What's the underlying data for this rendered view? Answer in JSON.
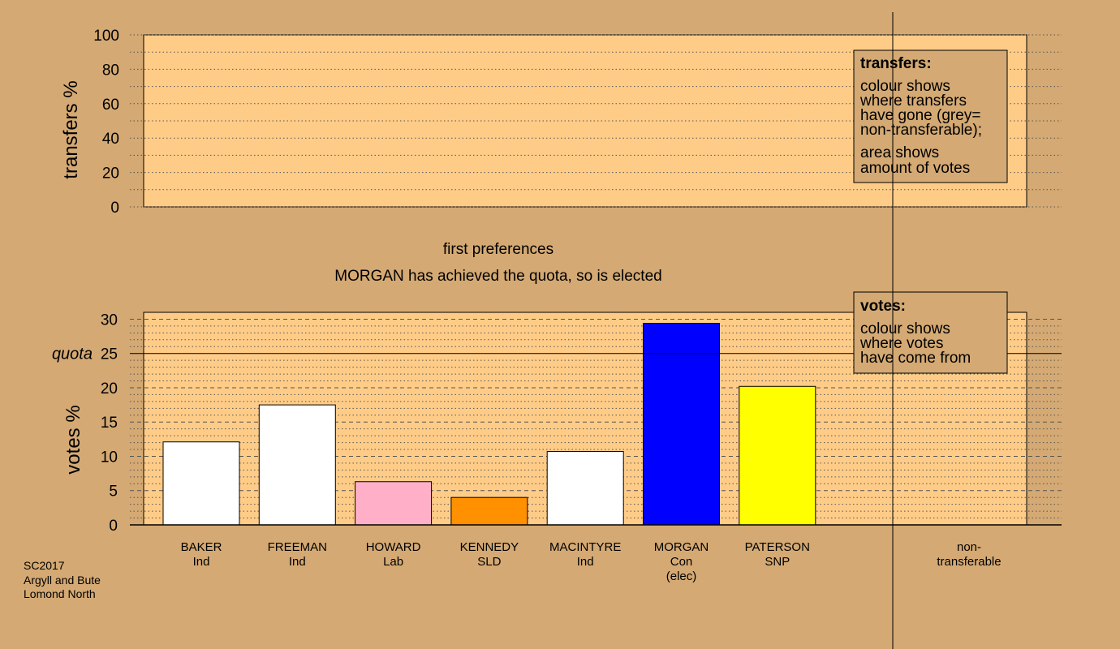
{
  "colors": {
    "background": "#d4a973",
    "panel": "#ffcc88",
    "legend_box": "#d4a973",
    "grid_line": "#555555",
    "axis": "#000000"
  },
  "chart_data": [
    {
      "type": "bar",
      "panel": "transfers",
      "ylabel": "transfers %",
      "ylim": [
        0,
        100
      ],
      "yticks": [
        0,
        20,
        40,
        60,
        80,
        100
      ],
      "grid": true,
      "bars": [],
      "legend": {
        "title": "transfers:",
        "lines": [
          "colour shows",
          "where transfers",
          "have gone (grey=",
          "non-transferable);",
          "area shows",
          "amount of votes"
        ],
        "placement": "top-right"
      }
    },
    {
      "type": "bar",
      "panel": "votes",
      "title": "first preferences",
      "subtitle": "MORGAN has achieved the quota, so is elected",
      "ylabel": "votes %",
      "ylim": [
        0,
        30
      ],
      "yticks": [
        0,
        5,
        10,
        15,
        20,
        25,
        30
      ],
      "quota": {
        "label": "quota",
        "value": 25
      },
      "grid": true,
      "categories": [
        {
          "name": "BAKER",
          "party": "Ind",
          "value": 12.1,
          "color": "#ffffff"
        },
        {
          "name": "FREEMAN",
          "party": "Ind",
          "value": 17.5,
          "color": "#ffffff"
        },
        {
          "name": "HOWARD",
          "party": "Lab",
          "value": 6.3,
          "color": "#ffb0c8"
        },
        {
          "name": "KENNEDY",
          "party": "SLD",
          "value": 4.0,
          "color": "#ff9000"
        },
        {
          "name": "MACINTYRE",
          "party": "Ind",
          "value": 10.7,
          "color": "#ffffff"
        },
        {
          "name": "MORGAN",
          "party": "Con",
          "note": "(elec)",
          "value": 29.4,
          "color": "#0000ff"
        },
        {
          "name": "PATERSON",
          "party": "SNP",
          "value": 20.2,
          "color": "#ffff00"
        }
      ],
      "extra_category": {
        "line1": "non-",
        "line2": "transferable"
      },
      "legend": {
        "title": "votes:",
        "lines": [
          "colour shows",
          "where votes",
          "have come from"
        ],
        "placement": "top-right"
      }
    }
  ],
  "footer": {
    "lines": [
      "SC2017",
      "Argyll and Bute",
      "Lomond North"
    ]
  }
}
